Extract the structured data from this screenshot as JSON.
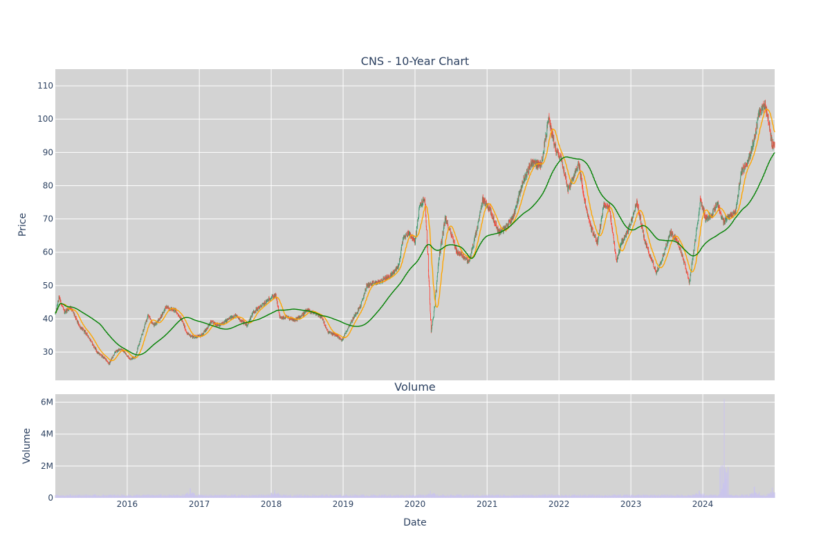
{
  "chart_data": [
    {
      "type": "candlestick",
      "title": "CNS - 10-Year Chart",
      "xlabel": "",
      "ylabel": "Price",
      "x_range": [
        "2015-01-01",
        "2024-12-31"
      ],
      "ylim": [
        21.5,
        115
      ],
      "yticks": [
        30,
        40,
        50,
        60,
        70,
        80,
        90,
        100,
        110
      ],
      "xticks": [
        "2016",
        "2017",
        "2018",
        "2019",
        "2020",
        "2021",
        "2022",
        "2023",
        "2024"
      ],
      "grid": true,
      "legend": "none",
      "colors": {
        "background": "#d3d3d3",
        "increasing": "#3d9970",
        "decreasing": "#ff4136",
        "ma_short": "#ffa500",
        "ma_long": "#008000",
        "grid": "#ffffff"
      },
      "price_anchors": [
        [
          "2015-01-02",
          41.5
        ],
        [
          "2015-01-20",
          46.5
        ],
        [
          "2015-02-15",
          42.0
        ],
        [
          "2015-03-20",
          43.5
        ],
        [
          "2015-05-01",
          38.0
        ],
        [
          "2015-06-15",
          35.0
        ],
        [
          "2015-08-01",
          30.0
        ],
        [
          "2015-09-10",
          28.0
        ],
        [
          "2015-10-01",
          26.5
        ],
        [
          "2015-11-01",
          30.0
        ],
        [
          "2015-12-01",
          31.0
        ],
        [
          "2016-01-15",
          28.0
        ],
        [
          "2016-02-10",
          28.5
        ],
        [
          "2016-03-15",
          35.0
        ],
        [
          "2016-04-15",
          41.0
        ],
        [
          "2016-05-15",
          38.0
        ],
        [
          "2016-06-15",
          40.0
        ],
        [
          "2016-07-15",
          43.5
        ],
        [
          "2016-09-01",
          42.5
        ],
        [
          "2016-10-01",
          40.0
        ],
        [
          "2016-11-01",
          35.5
        ],
        [
          "2016-12-01",
          34.5
        ],
        [
          "2017-01-15",
          35.0
        ],
        [
          "2017-03-01",
          39.0
        ],
        [
          "2017-04-15",
          38.0
        ],
        [
          "2017-06-01",
          40.0
        ],
        [
          "2017-07-01",
          41.0
        ],
        [
          "2017-08-01",
          39.5
        ],
        [
          "2017-09-01",
          38.0
        ],
        [
          "2017-10-01",
          42.0
        ],
        [
          "2017-11-15",
          44.0
        ],
        [
          "2018-01-01",
          46.5
        ],
        [
          "2018-01-25",
          47.0
        ],
        [
          "2018-02-15",
          40.0
        ],
        [
          "2018-03-15",
          40.5
        ],
        [
          "2018-05-01",
          39.5
        ],
        [
          "2018-06-15",
          41.5
        ],
        [
          "2018-07-01",
          42.5
        ],
        [
          "2018-08-15",
          41.5
        ],
        [
          "2018-09-15",
          40.5
        ],
        [
          "2018-10-15",
          36.0
        ],
        [
          "2018-12-01",
          35.0
        ],
        [
          "2018-12-25",
          33.5
        ],
        [
          "2019-02-01",
          38.0
        ],
        [
          "2019-03-01",
          41.0
        ],
        [
          "2019-04-01",
          44.0
        ],
        [
          "2019-05-01",
          50.0
        ],
        [
          "2019-07-01",
          51.0
        ],
        [
          "2019-09-01",
          53.0
        ],
        [
          "2019-10-10",
          56.0
        ],
        [
          "2019-11-01",
          64.0
        ],
        [
          "2019-12-01",
          66.0
        ],
        [
          "2020-01-01",
          63.0
        ],
        [
          "2020-01-25",
          74.0
        ],
        [
          "2020-02-20",
          76.0
        ],
        [
          "2020-03-05",
          60.0
        ],
        [
          "2020-03-23",
          36.0
        ],
        [
          "2020-04-10",
          44.0
        ],
        [
          "2020-05-01",
          58.0
        ],
        [
          "2020-06-01",
          70.0
        ],
        [
          "2020-07-01",
          66.0
        ],
        [
          "2020-08-01",
          60.0
        ],
        [
          "2020-09-01",
          59.0
        ],
        [
          "2020-10-01",
          57.0
        ],
        [
          "2020-11-15",
          68.0
        ],
        [
          "2020-12-10",
          76.0
        ],
        [
          "2021-01-15",
          73.0
        ],
        [
          "2021-03-01",
          66.0
        ],
        [
          "2021-04-01",
          67.0
        ],
        [
          "2021-05-15",
          71.0
        ],
        [
          "2021-07-01",
          81.0
        ],
        [
          "2021-08-15",
          87.0
        ],
        [
          "2021-10-01",
          86.0
        ],
        [
          "2021-11-10",
          100.0
        ],
        [
          "2021-12-15",
          91.0
        ],
        [
          "2022-01-15",
          88.0
        ],
        [
          "2022-02-15",
          79.0
        ],
        [
          "2022-03-15",
          82.0
        ],
        [
          "2022-04-10",
          87.0
        ],
        [
          "2022-05-15",
          74.0
        ],
        [
          "2022-06-15",
          67.0
        ],
        [
          "2022-07-15",
          63.0
        ],
        [
          "2022-08-20",
          75.0
        ],
        [
          "2022-09-15",
          73.0
        ],
        [
          "2022-10-20",
          57.0
        ],
        [
          "2022-11-15",
          63.0
        ],
        [
          "2022-12-15",
          66.0
        ],
        [
          "2023-02-01",
          75.0
        ],
        [
          "2023-03-10",
          64.0
        ],
        [
          "2023-04-01",
          60.0
        ],
        [
          "2023-05-10",
          54.0
        ],
        [
          "2023-06-15",
          59.0
        ],
        [
          "2023-07-20",
          66.0
        ],
        [
          "2023-08-20",
          64.0
        ],
        [
          "2023-09-20",
          59.0
        ],
        [
          "2023-10-25",
          51.0
        ],
        [
          "2023-11-25",
          64.0
        ],
        [
          "2023-12-20",
          76.0
        ],
        [
          "2024-01-15",
          70.0
        ],
        [
          "2024-02-15",
          71.0
        ],
        [
          "2024-03-15",
          75.0
        ],
        [
          "2024-04-15",
          69.0
        ],
        [
          "2024-05-15",
          71.0
        ],
        [
          "2024-06-15",
          72.0
        ],
        [
          "2024-07-15",
          84.0
        ],
        [
          "2024-08-15",
          87.0
        ],
        [
          "2024-09-15",
          93.0
        ],
        [
          "2024-10-15",
          102.0
        ],
        [
          "2024-11-15",
          104.0
        ],
        [
          "2024-12-01",
          99.0
        ],
        [
          "2024-12-20",
          92.0
        ],
        [
          "2024-12-31",
          93.0
        ]
      ]
    },
    {
      "type": "bar",
      "title": "Volume",
      "xlabel": "Date",
      "ylabel": "Volume",
      "ylim": [
        0,
        6500000
      ],
      "yticks": [
        0,
        2000000,
        4000000,
        6000000
      ],
      "ytick_labels": [
        "0",
        "2M",
        "4M",
        "6M"
      ],
      "xticks": [
        "2016",
        "2017",
        "2018",
        "2019",
        "2020",
        "2021",
        "2022",
        "2023",
        "2024"
      ],
      "grid": true,
      "baseline_volume": 150000,
      "spikes": [
        [
          "2016-11-15",
          600000
        ],
        [
          "2018-01-20",
          500000
        ],
        [
          "2020-03-20",
          450000
        ],
        [
          "2023-12-15",
          450000
        ],
        [
          "2024-04-20",
          6200000
        ],
        [
          "2024-09-20",
          700000
        ],
        [
          "2024-12-20",
          650000
        ]
      ]
    }
  ]
}
